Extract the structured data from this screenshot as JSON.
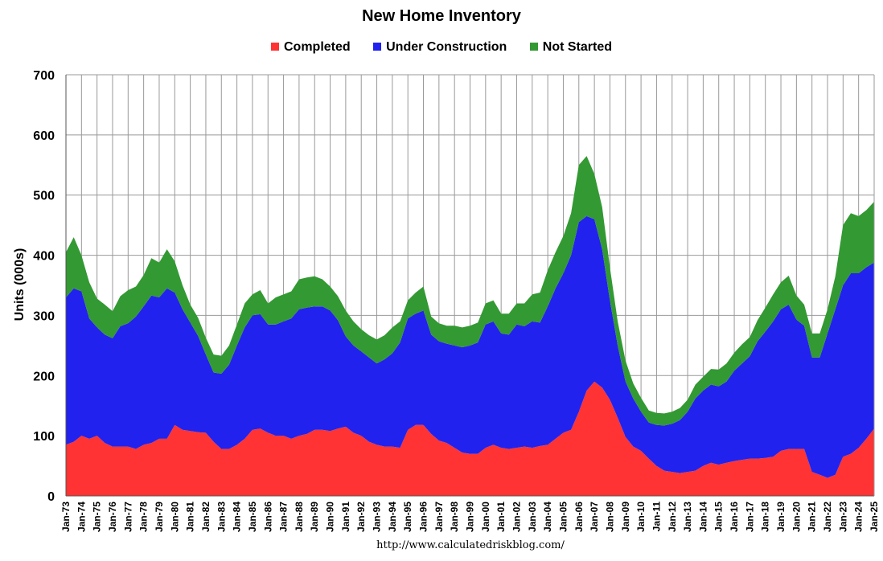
{
  "chart_data": {
    "type": "area",
    "stacked": true,
    "title": "New Home Inventory",
    "ylabel": "Units (000s)",
    "ylim": [
      0,
      700
    ],
    "yticks": [
      0,
      100,
      200,
      300,
      400,
      500,
      600,
      700
    ],
    "x_tick_labels": [
      "Jan-73",
      "Jan-74",
      "Jan-75",
      "Jan-76",
      "Jan-77",
      "Jan-78",
      "Jan-79",
      "Jan-80",
      "Jan-81",
      "Jan-82",
      "Jan-83",
      "Jan-84",
      "Jan-85",
      "Jan-86",
      "Jan-87",
      "Jan-88",
      "Jan-89",
      "Jan-90",
      "Jan-91",
      "Jan-92",
      "Jan-93",
      "Jan-94",
      "Jan-95",
      "Jan-96",
      "Jan-97",
      "Jan-98",
      "Jan-99",
      "Jan-00",
      "Jan-01",
      "Jan-02",
      "Jan-03",
      "Jan-04",
      "Jan-05",
      "Jan-06",
      "Jan-07",
      "Jan-08",
      "Jan-09",
      "Jan-10",
      "Jan-11",
      "Jan-12",
      "Jan-13",
      "Jan-14",
      "Jan-15",
      "Jan-16",
      "Jan-17",
      "Jan-18",
      "Jan-19",
      "Jan-20",
      "Jan-21",
      "Jan-22",
      "Jan-23",
      "Jan-24",
      "Jan-25"
    ],
    "grid": true,
    "legend_position": "top",
    "colors": {
      "Completed": "#ff3333",
      "Under Construction": "#2222ee",
      "Not Started": "#339933"
    },
    "x": [
      1973.0,
      1973.5,
      1974.0,
      1974.5,
      1975.0,
      1975.5,
      1976.0,
      1976.5,
      1977.0,
      1977.5,
      1978.0,
      1978.5,
      1979.0,
      1979.5,
      1980.0,
      1980.5,
      1981.0,
      1981.5,
      1982.0,
      1982.5,
      1983.0,
      1983.5,
      1984.0,
      1984.5,
      1985.0,
      1985.5,
      1986.0,
      1986.5,
      1987.0,
      1987.5,
      1988.0,
      1988.5,
      1989.0,
      1989.5,
      1990.0,
      1990.5,
      1991.0,
      1991.5,
      1992.0,
      1992.5,
      1993.0,
      1993.5,
      1994.0,
      1994.5,
      1995.0,
      1995.5,
      1996.0,
      1996.5,
      1997.0,
      1997.5,
      1998.0,
      1998.5,
      1999.0,
      1999.5,
      2000.0,
      2000.5,
      2001.0,
      2001.5,
      2002.0,
      2002.5,
      2003.0,
      2003.5,
      2004.0,
      2004.5,
      2005.0,
      2005.5,
      2006.0,
      2006.5,
      2007.0,
      2007.5,
      2008.0,
      2008.5,
      2009.0,
      2009.5,
      2010.0,
      2010.5,
      2011.0,
      2011.5,
      2012.0,
      2012.5,
      2013.0,
      2013.5,
      2014.0,
      2014.5,
      2015.0,
      2015.5,
      2016.0,
      2016.5,
      2017.0,
      2017.5,
      2018.0,
      2018.5,
      2019.0,
      2019.5,
      2020.0,
      2020.5,
      2021.0,
      2021.5,
      2022.0,
      2022.5,
      2023.0,
      2023.5,
      2024.0,
      2024.5,
      2025.0
    ],
    "series": [
      {
        "name": "Completed",
        "values": [
          85,
          90,
          100,
          95,
          100,
          88,
          82,
          82,
          82,
          78,
          85,
          88,
          95,
          95,
          118,
          110,
          108,
          106,
          105,
          90,
          78,
          78,
          85,
          95,
          110,
          112,
          105,
          100,
          100,
          95,
          100,
          103,
          110,
          110,
          108,
          112,
          115,
          105,
          100,
          90,
          85,
          82,
          82,
          80,
          110,
          118,
          118,
          103,
          92,
          88,
          80,
          72,
          70,
          70,
          80,
          85,
          80,
          78,
          80,
          82,
          80,
          83,
          85,
          95,
          105,
          110,
          140,
          175,
          190,
          180,
          160,
          130,
          98,
          82,
          75,
          62,
          50,
          42,
          40,
          38,
          40,
          42,
          50,
          55,
          52,
          55,
          58,
          60,
          62,
          62,
          63,
          65,
          75,
          78,
          78,
          78,
          40,
          35,
          30,
          35,
          65,
          70,
          80,
          95,
          112
        ]
      },
      {
        "name": "Under Construction",
        "values": [
          245,
          255,
          240,
          200,
          180,
          180,
          180,
          200,
          205,
          220,
          230,
          245,
          235,
          250,
          220,
          200,
          180,
          160,
          130,
          115,
          125,
          140,
          165,
          185,
          190,
          190,
          180,
          185,
          190,
          200,
          210,
          210,
          205,
          205,
          200,
          180,
          150,
          145,
          140,
          140,
          135,
          145,
          155,
          175,
          185,
          185,
          190,
          165,
          165,
          165,
          170,
          175,
          180,
          185,
          205,
          205,
          190,
          190,
          205,
          200,
          210,
          205,
          230,
          250,
          265,
          290,
          315,
          290,
          270,
          230,
          165,
          120,
          92,
          80,
          65,
          60,
          68,
          75,
          80,
          88,
          100,
          120,
          125,
          130,
          130,
          135,
          150,
          160,
          170,
          195,
          210,
          225,
          235,
          240,
          215,
          205,
          190,
          195,
          240,
          275,
          285,
          300,
          290,
          285,
          276
        ]
      },
      {
        "name": "Not Started",
        "values": [
          75,
          85,
          60,
          60,
          48,
          50,
          45,
          50,
          55,
          50,
          52,
          62,
          58,
          65,
          52,
          40,
          30,
          30,
          28,
          30,
          30,
          32,
          35,
          40,
          35,
          40,
          35,
          45,
          45,
          45,
          50,
          50,
          50,
          45,
          40,
          40,
          43,
          40,
          37,
          37,
          40,
          40,
          43,
          35,
          30,
          35,
          40,
          30,
          30,
          30,
          33,
          33,
          33,
          33,
          35,
          35,
          33,
          35,
          35,
          38,
          45,
          50,
          60,
          60,
          62,
          70,
          95,
          100,
          75,
          70,
          55,
          40,
          35,
          25,
          23,
          20,
          20,
          20,
          20,
          20,
          20,
          23,
          23,
          26,
          28,
          30,
          30,
          32,
          32,
          35,
          40,
          45,
          45,
          48,
          40,
          35,
          40,
          40,
          40,
          55,
          100,
          100,
          95,
          95,
          101
        ]
      }
    ]
  },
  "source_url": "http://www.calculatedriskblog.com/"
}
